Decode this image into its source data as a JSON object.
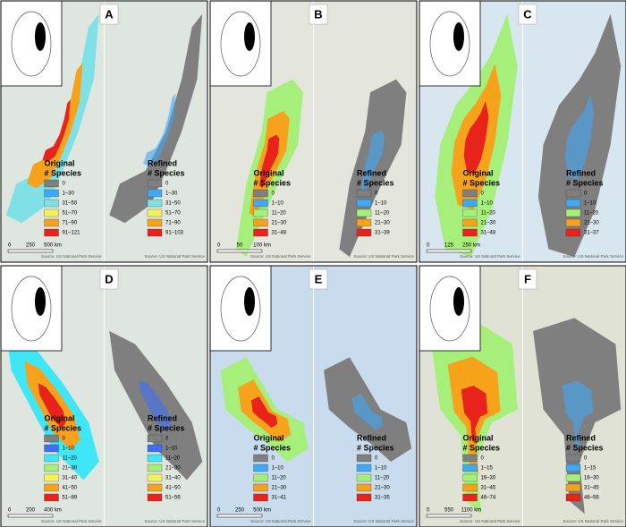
{
  "panels": [
    {
      "letter": "A",
      "scale": [
        "0",
        "250",
        "500 km"
      ],
      "maps": [
        {
          "title": "Original",
          "subtitle": "# Species",
          "source": "Source: US National Park Service",
          "entries": [
            {
              "label": "0",
              "color": "#7f7f7f"
            },
            {
              "label": "1–30",
              "color": "#3fa9f5"
            },
            {
              "label": "31–50",
              "color": "#7fe0e6"
            },
            {
              "label": "51–70",
              "color": "#f2f25a"
            },
            {
              "label": "71–90",
              "color": "#f7a21b"
            },
            {
              "label": "91–121",
              "color": "#e8231c"
            }
          ]
        },
        {
          "title": "Refined",
          "subtitle": "# Species",
          "source": "Source: US National Park Service",
          "entries": [
            {
              "label": "0",
              "color": "#7f7f7f"
            },
            {
              "label": "1–30",
              "color": "#3fa9f5"
            },
            {
              "label": "31–50",
              "color": "#7fe0e6"
            },
            {
              "label": "51–70",
              "color": "#f2f25a"
            },
            {
              "label": "71–90",
              "color": "#f7a21b"
            },
            {
              "label": "91–103",
              "color": "#e8231c"
            }
          ]
        }
      ]
    },
    {
      "letter": "B",
      "scale": [
        "0",
        "50",
        "100 km"
      ],
      "maps": [
        {
          "title": "Original",
          "subtitle": "# Species",
          "source": "Source: US National Park Service",
          "entries": [
            {
              "label": "0",
              "color": "#7f7f7f"
            },
            {
              "label": "1–10",
              "color": "#3fa9f5"
            },
            {
              "label": "11–20",
              "color": "#a6ef7a"
            },
            {
              "label": "21–30",
              "color": "#f7a21b"
            },
            {
              "label": "31–48",
              "color": "#e8231c"
            }
          ]
        },
        {
          "title": "Refined",
          "subtitle": "# Species",
          "source": "Source: US National Park Service",
          "entries": [
            {
              "label": "0",
              "color": "#7f7f7f"
            },
            {
              "label": "1–10",
              "color": "#3fa9f5"
            },
            {
              "label": "11–20",
              "color": "#a6ef7a"
            },
            {
              "label": "21–30",
              "color": "#f7a21b"
            },
            {
              "label": "31–39",
              "color": "#e8231c"
            }
          ]
        }
      ]
    },
    {
      "letter": "C",
      "scale": [
        "0",
        "125",
        "250 km"
      ],
      "maps": [
        {
          "title": "Original",
          "subtitle": "# Species",
          "source": "Source: US National Park Service",
          "entries": [
            {
              "label": "0",
              "color": "#7f7f7f"
            },
            {
              "label": "1–10",
              "color": "#3fa9f5"
            },
            {
              "label": "11–20",
              "color": "#a6ef7a"
            },
            {
              "label": "21–30",
              "color": "#f7a21b"
            },
            {
              "label": "31–48",
              "color": "#e8231c"
            }
          ]
        },
        {
          "title": "Refined",
          "subtitle": "# Species",
          "source": "Source: US National Park Service",
          "entries": [
            {
              "label": "0",
              "color": "#7f7f7f"
            },
            {
              "label": "1–10",
              "color": "#3fa9f5"
            },
            {
              "label": "11–20",
              "color": "#a6ef7a"
            },
            {
              "label": "21–30",
              "color": "#f7a21b"
            },
            {
              "label": "31–37",
              "color": "#e8231c"
            }
          ]
        }
      ]
    },
    {
      "letter": "D",
      "scale": [
        "0",
        "200",
        "400 km"
      ],
      "maps": [
        {
          "title": "Original",
          "subtitle": "# Species",
          "source": "Source: US National Park Service",
          "entries": [
            {
              "label": "0",
              "color": "#7f7f7f"
            },
            {
              "label": "1–10",
              "color": "#3f6ff5"
            },
            {
              "label": "11–20",
              "color": "#3fe6f5"
            },
            {
              "label": "21–30",
              "color": "#a6ef7a"
            },
            {
              "label": "31–40",
              "color": "#f2f25a"
            },
            {
              "label": "41–50",
              "color": "#f7a21b"
            },
            {
              "label": "51–89",
              "color": "#e8231c"
            }
          ]
        },
        {
          "title": "Refined",
          "subtitle": "# Species",
          "source": "Source: US National Park Service",
          "entries": [
            {
              "label": "0",
              "color": "#7f7f7f"
            },
            {
              "label": "1–10",
              "color": "#3f6ff5"
            },
            {
              "label": "11–20",
              "color": "#3fe6f5"
            },
            {
              "label": "21–30",
              "color": "#a6ef7a"
            },
            {
              "label": "31–40",
              "color": "#f2f25a"
            },
            {
              "label": "41–50",
              "color": "#f7a21b"
            },
            {
              "label": "51–56",
              "color": "#e8231c"
            }
          ]
        }
      ]
    },
    {
      "letter": "E",
      "scale": [
        "0",
        "250",
        "500 km"
      ],
      "maps": [
        {
          "title": "Original",
          "subtitle": "# Species",
          "source": "Source: US National Park Service",
          "entries": [
            {
              "label": "0",
              "color": "#7f7f7f"
            },
            {
              "label": "1–10",
              "color": "#3fa9f5"
            },
            {
              "label": "11–20",
              "color": "#a6ef7a"
            },
            {
              "label": "21–30",
              "color": "#f7a21b"
            },
            {
              "label": "31–41",
              "color": "#e8231c"
            }
          ]
        },
        {
          "title": "Refined",
          "subtitle": "# Species",
          "source": "Source: US National Park Service",
          "entries": [
            {
              "label": "0",
              "color": "#7f7f7f"
            },
            {
              "label": "1–10",
              "color": "#3fa9f5"
            },
            {
              "label": "11–20",
              "color": "#a6ef7a"
            },
            {
              "label": "21–30",
              "color": "#f7a21b"
            },
            {
              "label": "31–35",
              "color": "#e8231c"
            }
          ]
        }
      ]
    },
    {
      "letter": "F",
      "scale": [
        "0",
        "550",
        "1100 km"
      ],
      "maps": [
        {
          "title": "Original",
          "subtitle": "# Species",
          "source": "Source: US National Park Service",
          "entries": [
            {
              "label": "0",
              "color": "#7f7f7f"
            },
            {
              "label": "1–15",
              "color": "#3fa9f5"
            },
            {
              "label": "16–30",
              "color": "#a6ef7a"
            },
            {
              "label": "31–45",
              "color": "#f7a21b"
            },
            {
              "label": "46–74",
              "color": "#e8231c"
            }
          ]
        },
        {
          "title": "Refined",
          "subtitle": "# Species",
          "source": "Source: US National Park Service",
          "entries": [
            {
              "label": "0",
              "color": "#7f7f7f"
            },
            {
              "label": "1–15",
              "color": "#3fa9f5"
            },
            {
              "label": "16–30",
              "color": "#a6ef7a"
            },
            {
              "label": "31–45",
              "color": "#f7a21b"
            },
            {
              "label": "46–56",
              "color": "#e8231c"
            }
          ]
        }
      ]
    }
  ]
}
